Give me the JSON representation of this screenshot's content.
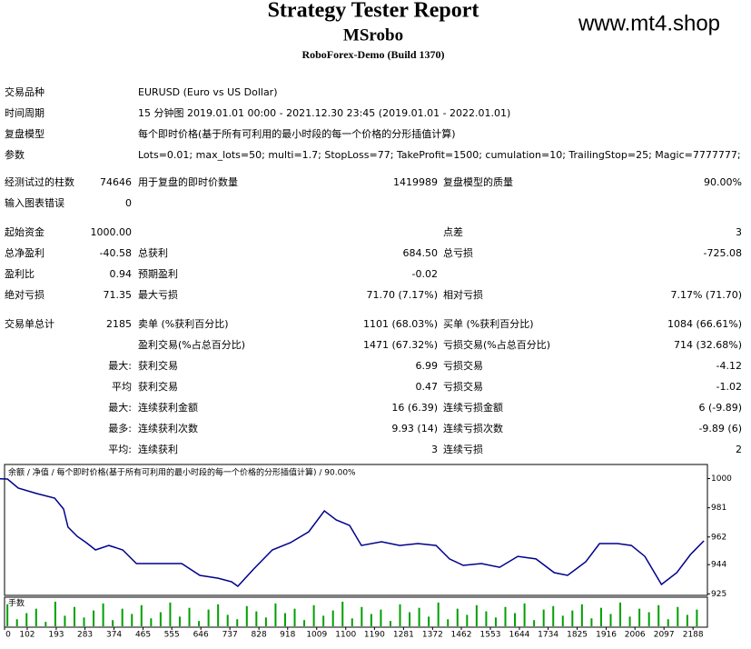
{
  "header": {
    "title": "Strategy Tester Report",
    "subtitle": "MSrobo",
    "server": "RoboForex-Demo (Build 1370)",
    "watermark": "www.mt4.shop"
  },
  "info": [
    {
      "label": "交易品种",
      "text": "EURUSD (Euro vs US Dollar)"
    },
    {
      "label": "时间周期",
      "text": "15 分钟图 2019.01.01 00:00 - 2021.12.30 23:45 (2019.01.01 - 2022.01.01)"
    },
    {
      "label": "复盘模型",
      "text": "每个即时价格(基于所有可利用的最小时段的每一个价格的分形插值计算)"
    },
    {
      "label": "参数",
      "text": "Lots=0.01; max_lots=50; multi=1.7; StopLoss=77; TakeProfit=1500; cumulation=10; TrailingStop=25; Magic=7777777;"
    }
  ],
  "stats": [
    [
      "经测试过的柱数",
      "74646",
      "用于复盘的即时价数量",
      "1419989",
      "复盘模型的质量",
      "90.00%"
    ],
    [
      "输入图表错误",
      "0",
      null,
      null,
      null,
      null
    ],
    [
      "起始资金",
      "1000.00",
      null,
      null,
      "点差",
      "3"
    ],
    [
      "总净盈利",
      "-40.58",
      "总获利",
      "684.50",
      "总亏损",
      "-725.08"
    ],
    [
      "盈利比",
      "0.94",
      "预期盈利",
      "-0.02",
      null,
      null
    ],
    [
      "绝对亏损",
      "71.35",
      "最大亏损",
      "71.70 (7.17%)",
      "相对亏损",
      "7.17% (71.70)"
    ],
    [
      "交易单总计",
      "2185",
      "卖单 (%获利百分比)",
      "1101 (68.03%)",
      "买单 (%获利百分比)",
      "1084 (66.61%)"
    ],
    [
      null,
      null,
      "盈利交易(%占总百分比)",
      "1471 (67.32%)",
      "亏损交易(%占总百分比)",
      "714 (32.68%)"
    ],
    [
      null,
      "最大:",
      "获利交易",
      "6.99",
      "亏损交易",
      "-4.12"
    ],
    [
      null,
      "平均",
      "获利交易",
      "0.47",
      "亏损交易",
      "-1.02"
    ],
    [
      null,
      "最大:",
      "连续获利金额",
      "16 (6.39)",
      "连续亏损金额",
      "6 (-9.89)"
    ],
    [
      null,
      "最多:",
      "连续获利次数",
      "9.93 (14)",
      "连续亏损次数",
      "-9.89 (6)"
    ],
    [
      null,
      "平均:",
      "连续获利",
      "3",
      "连续亏损",
      "2"
    ]
  ],
  "chart_data": {
    "type": "line",
    "legend": "余额 / 净值 / 每个即时价格(基于所有可利用的最小时段的每一个价格的分形插值计算) / 90.00%",
    "color": "#00008b",
    "x": [
      0,
      40,
      74,
      131,
      188,
      216,
      230,
      259,
      287,
      316,
      358,
      401,
      444,
      486,
      543,
      586,
      643,
      700,
      742,
      762,
      814,
      870,
      927,
      984,
      1033,
      1070,
      1112,
      1149,
      1212,
      1269,
      1326,
      1383,
      1425,
      1468,
      1525,
      1582,
      1639,
      1696,
      1753,
      1795,
      1852,
      1895,
      1952,
      1995,
      2037,
      2089,
      2137,
      2180,
      2222
    ],
    "values": [
      1000,
      999.7,
      993.8,
      990.3,
      987.3,
      980.2,
      968.4,
      962.4,
      958.3,
      953.6,
      956.5,
      953.6,
      944.7,
      944.7,
      944.7,
      944.7,
      937.0,
      935.2,
      932.9,
      929.9,
      941.7,
      953.6,
      958.3,
      965.4,
      979.0,
      973.1,
      969.5,
      956.5,
      958.9,
      956.5,
      957.7,
      956.5,
      947.7,
      943.5,
      944.7,
      942.3,
      949.4,
      947.7,
      938.8,
      937.0,
      945.9,
      957.7,
      957.7,
      956.5,
      949.4,
      931.1,
      938.8,
      950.6,
      959.5
    ],
    "xlim": [
      31,
      2233
    ],
    "ylim": [
      924,
      1008
    ],
    "yticks": [
      1000,
      981,
      962,
      944,
      925
    ],
    "xticks": [
      0,
      102,
      193,
      283,
      374,
      465,
      555,
      646,
      737,
      828,
      918,
      1009,
      1100,
      1190,
      1281,
      1372,
      1462,
      1553,
      1644,
      1734,
      1825,
      1916,
      2006,
      2097,
      2188
    ],
    "volume": {
      "name": "手数",
      "color": "#00a000",
      "ylim": [
        0,
        0.3
      ],
      "x": [
        40,
        70,
        100,
        130,
        160,
        190,
        220,
        250,
        280,
        310,
        340,
        370,
        400,
        430,
        460,
        490,
        520,
        550,
        580,
        610,
        640,
        670,
        700,
        730,
        760,
        790,
        820,
        850,
        880,
        910,
        940,
        970,
        1000,
        1030,
        1060,
        1090,
        1120,
        1150,
        1180,
        1210,
        1240,
        1270,
        1300,
        1330,
        1360,
        1390,
        1420,
        1450,
        1480,
        1510,
        1540,
        1570,
        1600,
        1630,
        1660,
        1690,
        1720,
        1750,
        1780,
        1810,
        1840,
        1870,
        1900,
        1930,
        1960,
        1990,
        2020,
        2050,
        2080,
        2110,
        2140,
        2170,
        2200
      ],
      "values": [
        0.25,
        0.08,
        0.15,
        0.2,
        0.05,
        0.28,
        0.12,
        0.22,
        0.1,
        0.18,
        0.26,
        0.07,
        0.2,
        0.14,
        0.24,
        0.09,
        0.16,
        0.27,
        0.11,
        0.21,
        0.06,
        0.19,
        0.25,
        0.13,
        0.08,
        0.23,
        0.17,
        0.1,
        0.26,
        0.15,
        0.2,
        0.07,
        0.24,
        0.12,
        0.18,
        0.28,
        0.09,
        0.22,
        0.14,
        0.19,
        0.06,
        0.25,
        0.16,
        0.21,
        0.11,
        0.27,
        0.08,
        0.2,
        0.13,
        0.24,
        0.17,
        0.1,
        0.22,
        0.15,
        0.26,
        0.07,
        0.19,
        0.23,
        0.12,
        0.18,
        0.25,
        0.09,
        0.21,
        0.14,
        0.27,
        0.11,
        0.2,
        0.16,
        0.24,
        0.08,
        0.22,
        0.13,
        0.19
      ]
    }
  }
}
